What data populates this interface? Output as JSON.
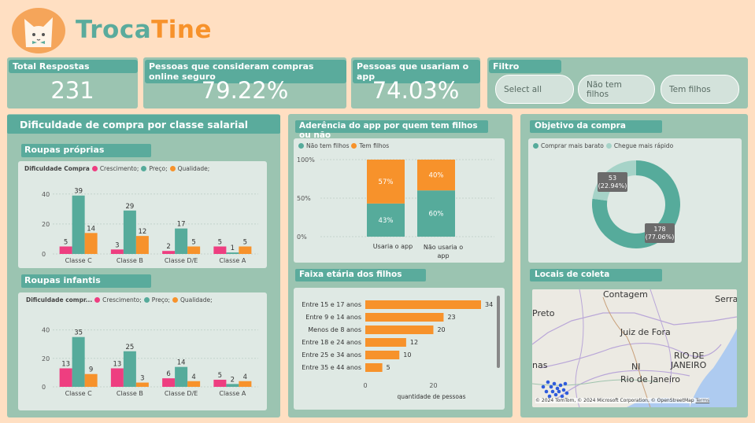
{
  "brand": {
    "part1": "Troca",
    "part2": "Tine"
  },
  "kpis": [
    {
      "label": "Total Respostas",
      "value": "231"
    },
    {
      "label": "Pessoas que consideram compras online seguro",
      "value": "79.22%"
    },
    {
      "label": "Pessoas que usariam o app",
      "value": "74.03%"
    }
  ],
  "filter": {
    "title": "Filtro",
    "options": [
      "Select all",
      "Não tem filhos",
      "Tem filhos"
    ]
  },
  "colors": {
    "pink": "#ee3e80",
    "teal": "#56ab9b",
    "orange": "#f7922b",
    "lightteal": "#a6d3c8"
  },
  "salary_section": {
    "title": "Dificuldade de compra por classe salarial",
    "sub1": "Roupas próprias",
    "sub2": "Roupas infantis",
    "legend1_title": "Dificuldade Compra",
    "legend2_title": "Dificuldade compr...",
    "legend_items": [
      "Crescimento;",
      "Preço;",
      "Qualidade;"
    ]
  },
  "chart_data": [
    {
      "type": "bar",
      "title": "Roupas próprias",
      "categories": [
        "Classe C",
        "Classe B",
        "Classe D/E",
        "Classe A"
      ],
      "series": [
        {
          "name": "Crescimento;",
          "values": [
            5,
            3,
            2,
            5
          ]
        },
        {
          "name": "Preço;",
          "values": [
            39,
            29,
            17,
            1
          ]
        },
        {
          "name": "Qualidade;",
          "values": [
            14,
            12,
            5,
            5
          ]
        }
      ],
      "yticks": [
        "40",
        "20",
        "0"
      ],
      "ylim": [
        0,
        42
      ]
    },
    {
      "type": "bar",
      "title": "Roupas infantis",
      "categories": [
        "Classe C",
        "Classe B",
        "Classe D/E",
        "Classe A"
      ],
      "series": [
        {
          "name": "Crescimento;",
          "values": [
            13,
            13,
            6,
            5
          ]
        },
        {
          "name": "Preço;",
          "values": [
            35,
            25,
            14,
            2
          ]
        },
        {
          "name": "Qualidade;",
          "values": [
            9,
            3,
            4,
            4
          ]
        }
      ],
      "yticks": [
        "40",
        "20",
        "0"
      ],
      "ylim": [
        0,
        42
      ]
    },
    {
      "type": "bar",
      "title": "Aderência do app por quem tem filhos ou não",
      "stacked": true,
      "categories": [
        "Usaria o app",
        "Não usaria o app"
      ],
      "series": [
        {
          "name": "Não tem filhos",
          "values": [
            43,
            60
          ],
          "labels": [
            "43%",
            "60%"
          ]
        },
        {
          "name": "Tem filhos",
          "values": [
            57,
            40
          ],
          "labels": [
            "57%",
            "40%"
          ]
        }
      ],
      "yticks": [
        "100%",
        "50%",
        "0%"
      ]
    },
    {
      "type": "bar",
      "orientation": "horizontal",
      "title": "Faixa etária dos filhos",
      "categories": [
        "Entre 15 e 17 anos",
        "Entre 9 e 14 anos",
        "Menos de 8 anos",
        "Entre 18 e 24 anos",
        "Entre 25 e 34 anos",
        "Entre 35 e 44 anos"
      ],
      "values": [
        34,
        23,
        20,
        12,
        10,
        5
      ],
      "xticks": [
        "0",
        "20"
      ],
      "xlabel": "quantidade de pessoas"
    },
    {
      "type": "pie",
      "title": "Objetivo da compra",
      "donut": true,
      "categories": [
        "Comprar mais barato",
        "Chegue mais rápido"
      ],
      "values": [
        178,
        53
      ],
      "labels": [
        "178\n(77.06%)",
        "53\n(22.94%)"
      ],
      "label_lines": [
        [
          "178",
          "(77.06%)"
        ],
        [
          "53",
          "(22.94%)"
        ]
      ]
    }
  ],
  "adherence": {
    "title": "Aderência do app por quem tem filhos ou não",
    "legend": [
      "Não tem filhos",
      "Tem filhos"
    ],
    "cat1": "Usaria o app",
    "cat2a": "Não usaria o",
    "cat2b": "app"
  },
  "ages": {
    "title": "Faixa etária dos filhos",
    "xlabel": "quantidade de pessoas"
  },
  "objective": {
    "title": "Objetivo da compra",
    "legend": [
      "Comprar mais barato",
      "Chegue mais rápido"
    ]
  },
  "map": {
    "title": "Locais de coleta",
    "labels": [
      "Contagem",
      "Serra",
      "Preto",
      "Juiz de Fora",
      "RIO DE",
      "JANEIRO",
      "NI",
      "Rio de Janeiro",
      "nas"
    ],
    "attribution": "© 2024 TomTom, © 2024 Microsoft Corporation, © OpenStreetMap",
    "terms": "Terms"
  }
}
